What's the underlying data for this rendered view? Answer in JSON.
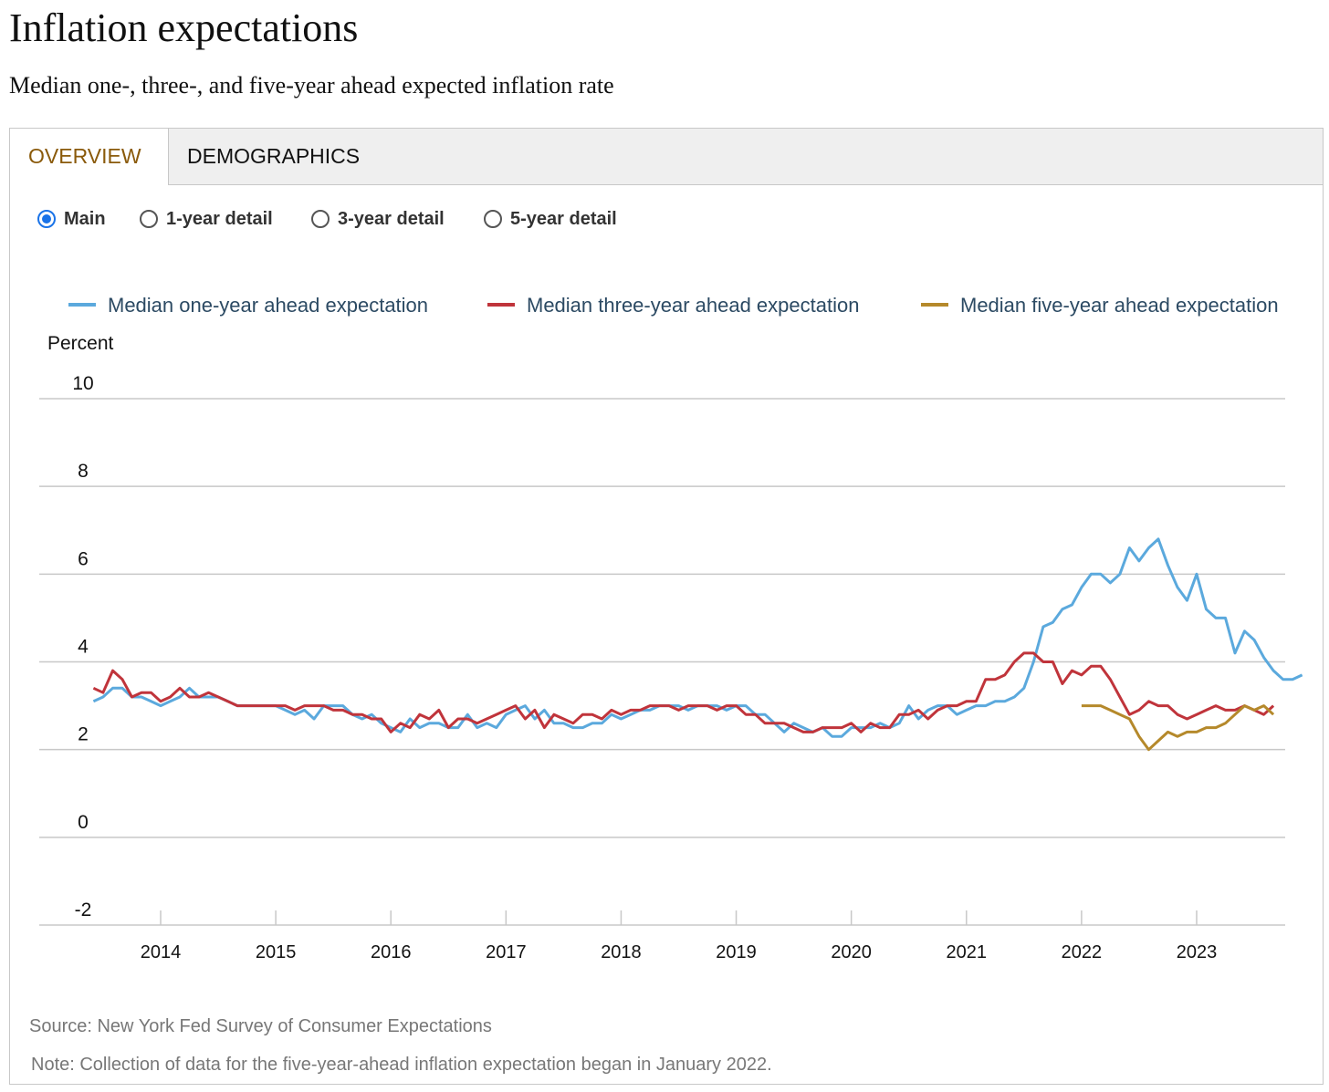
{
  "title": "Inflation expectations",
  "subtitle": "Median one-, three-, and five-year ahead expected inflation rate",
  "tabs": [
    {
      "label": "OVERVIEW",
      "active": true
    },
    {
      "label": "DEMOGRAPHICS",
      "active": false
    }
  ],
  "views": [
    {
      "label": "Main",
      "selected": true
    },
    {
      "label": "1-year detail",
      "selected": false
    },
    {
      "label": "3-year detail",
      "selected": false
    },
    {
      "label": "5-year detail",
      "selected": false
    }
  ],
  "source": "Source: New York Fed Survey of Consumer Expectations",
  "note": "Note: Collection of data for the five-year-ahead inflation expectation began in January 2022.",
  "chart_data": {
    "type": "line",
    "ylabel": "Percent",
    "ylim": [
      -2,
      10
    ],
    "yticks": [
      10,
      8,
      6,
      4,
      2,
      0,
      -2
    ],
    "xlim": [
      "2013-01",
      "2023-09"
    ],
    "xticks": [
      "2014",
      "2015",
      "2016",
      "2017",
      "2018",
      "2019",
      "2020",
      "2021",
      "2022",
      "2023"
    ],
    "grid": true,
    "legend": "top",
    "series": [
      {
        "name": "Median one-year ahead expectation",
        "color": "#5ba9dd",
        "start": "2013-06",
        "values": [
          3.1,
          3.2,
          3.4,
          3.4,
          3.2,
          3.2,
          3.1,
          3.0,
          3.1,
          3.2,
          3.4,
          3.2,
          3.2,
          3.2,
          3.1,
          3.0,
          3.0,
          3.0,
          3.0,
          3.0,
          2.9,
          2.8,
          2.9,
          2.7,
          3.0,
          3.0,
          3.0,
          2.8,
          2.7,
          2.8,
          2.6,
          2.5,
          2.4,
          2.7,
          2.5,
          2.6,
          2.6,
          2.5,
          2.5,
          2.8,
          2.5,
          2.6,
          2.5,
          2.8,
          2.9,
          3.0,
          2.7,
          2.9,
          2.6,
          2.6,
          2.5,
          2.5,
          2.6,
          2.6,
          2.8,
          2.7,
          2.8,
          2.9,
          2.9,
          3.0,
          3.0,
          3.0,
          2.9,
          3.0,
          3.0,
          3.0,
          2.9,
          3.0,
          3.0,
          2.8,
          2.8,
          2.6,
          2.4,
          2.6,
          2.5,
          2.4,
          2.5,
          2.3,
          2.3,
          2.5,
          2.5,
          2.5,
          2.6,
          2.5,
          2.6,
          3.0,
          2.7,
          2.9,
          3.0,
          3.0,
          2.8,
          2.9,
          3.0,
          3.0,
          3.1,
          3.1,
          3.2,
          3.4,
          4.0,
          4.8,
          4.9,
          5.2,
          5.3,
          5.7,
          6.0,
          6.0,
          5.8,
          6.0,
          6.6,
          6.3,
          6.6,
          6.8,
          6.2,
          5.7,
          5.4,
          6.0,
          5.2,
          5.0,
          5.0,
          4.2,
          4.7,
          4.5,
          4.1,
          3.8,
          3.6,
          3.6,
          3.7
        ]
      },
      {
        "name": "Median three-year ahead expectation",
        "color": "#c0343b",
        "start": "2013-06",
        "values": [
          3.4,
          3.3,
          3.8,
          3.6,
          3.2,
          3.3,
          3.3,
          3.1,
          3.2,
          3.4,
          3.2,
          3.2,
          3.3,
          3.2,
          3.1,
          3.0,
          3.0,
          3.0,
          3.0,
          3.0,
          3.0,
          2.9,
          3.0,
          3.0,
          3.0,
          2.9,
          2.9,
          2.8,
          2.8,
          2.7,
          2.7,
          2.4,
          2.6,
          2.5,
          2.8,
          2.7,
          2.9,
          2.5,
          2.7,
          2.7,
          2.6,
          2.7,
          2.8,
          2.9,
          3.0,
          2.7,
          2.9,
          2.5,
          2.8,
          2.7,
          2.6,
          2.8,
          2.8,
          2.7,
          2.9,
          2.8,
          2.9,
          2.9,
          3.0,
          3.0,
          3.0,
          2.9,
          3.0,
          3.0,
          3.0,
          2.9,
          3.0,
          3.0,
          2.8,
          2.8,
          2.6,
          2.6,
          2.6,
          2.5,
          2.4,
          2.4,
          2.5,
          2.5,
          2.5,
          2.6,
          2.4,
          2.6,
          2.5,
          2.5,
          2.8,
          2.8,
          2.9,
          2.7,
          2.9,
          3.0,
          3.0,
          3.1,
          3.1,
          3.6,
          3.6,
          3.7,
          4.0,
          4.2,
          4.2,
          4.0,
          4.0,
          3.5,
          3.8,
          3.7,
          3.9,
          3.9,
          3.6,
          3.2,
          2.8,
          2.9,
          3.1,
          3.0,
          3.0,
          2.8,
          2.7,
          2.8,
          2.9,
          3.0,
          2.9,
          2.9,
          3.0,
          2.9,
          2.8,
          3.0
        ]
      },
      {
        "name": "Median five-year ahead expectation",
        "color": "#b5892b",
        "start": "2022-01",
        "values": [
          3.0,
          3.0,
          3.0,
          2.9,
          2.8,
          2.7,
          2.3,
          2.0,
          2.2,
          2.4,
          2.3,
          2.4,
          2.4,
          2.5,
          2.5,
          2.6,
          2.8,
          3.0,
          2.9,
          3.0,
          2.8
        ]
      }
    ]
  }
}
